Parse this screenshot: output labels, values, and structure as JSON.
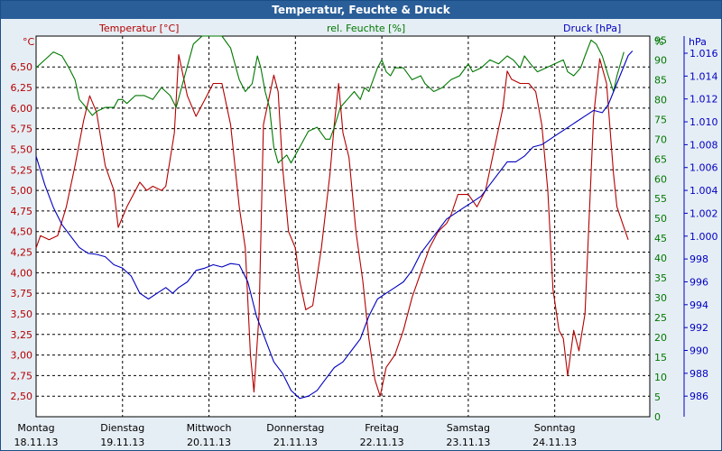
{
  "title": "Temperatur, Feuchte & Druck",
  "legend": {
    "temperature": "Temperatur [°C]",
    "humidity": "rel. Feuchte [%]",
    "pressure": "Druck [hPa]"
  },
  "units": {
    "left": "°C",
    "right1": "%",
    "right2": "hPa"
  },
  "colors": {
    "temperature": "#b40000",
    "humidity": "#007800",
    "pressure": "#0000c0",
    "grid": "#000000",
    "background": "#ffffff"
  },
  "chart_data": {
    "type": "line",
    "title": "Temperatur, Feuchte & Druck",
    "grid": true,
    "x_categories": [
      {
        "day": "Montag",
        "date": "18.11.13"
      },
      {
        "day": "Dienstag",
        "date": "19.11.13"
      },
      {
        "day": "Mittwoch",
        "date": "20.11.13"
      },
      {
        "day": "Donnerstag",
        "date": "21.11.13"
      },
      {
        "day": "Freitag",
        "date": "22.11.13"
      },
      {
        "day": "Samstag",
        "date": "23.11.13"
      },
      {
        "day": "Sonntag",
        "date": "24.11.13"
      }
    ],
    "x_unit": "days since Montag 18.11.13 00:00",
    "xlim": [
      0,
      7.1
    ],
    "axes": {
      "temperature": {
        "ylim": [
          2.25,
          6.875
        ],
        "ticks": [
          "2,50",
          "2,75",
          "3,00",
          "3,25",
          "3,50",
          "3,75",
          "4,00",
          "4,25",
          "4,50",
          "4,75",
          "5,00",
          "5,25",
          "5,50",
          "5,75",
          "6,00",
          "6,25",
          "6,50"
        ]
      },
      "humidity": {
        "ylim": [
          0,
          96
        ],
        "ticks": [
          "0",
          "5",
          "10",
          "15",
          "20",
          "25",
          "30",
          "35",
          "40",
          "45",
          "50",
          "55",
          "60",
          "65",
          "70",
          "75",
          "80",
          "85",
          "90",
          "95"
        ]
      },
      "pressure": {
        "ylim": [
          984.2,
          1017.5
        ],
        "ticks": [
          "986",
          "988",
          "990",
          "992",
          "994",
          "996",
          "998",
          "1.000",
          "1.002",
          "1.004",
          "1.006",
          "1.008",
          "1.010",
          "1.012",
          "1.014",
          "1.016"
        ]
      }
    },
    "series": [
      {
        "name": "Temperatur [°C]",
        "axis": "temperature",
        "points": [
          [
            0,
            4.3
          ],
          [
            0.05,
            4.45
          ],
          [
            0.15,
            4.4
          ],
          [
            0.25,
            4.45
          ],
          [
            0.35,
            4.8
          ],
          [
            0.45,
            5.3
          ],
          [
            0.55,
            5.85
          ],
          [
            0.62,
            6.15
          ],
          [
            0.7,
            5.95
          ],
          [
            0.8,
            5.3
          ],
          [
            0.9,
            5.0
          ],
          [
            0.95,
            4.55
          ],
          [
            1.05,
            4.8
          ],
          [
            1.15,
            5.0
          ],
          [
            1.2,
            5.1
          ],
          [
            1.28,
            5.0
          ],
          [
            1.35,
            5.05
          ],
          [
            1.45,
            5.0
          ],
          [
            1.5,
            5.05
          ],
          [
            1.6,
            5.7
          ],
          [
            1.65,
            6.65
          ],
          [
            1.75,
            6.15
          ],
          [
            1.85,
            5.9
          ],
          [
            1.95,
            6.1
          ],
          [
            2.05,
            6.3
          ],
          [
            2.15,
            6.3
          ],
          [
            2.25,
            5.8
          ],
          [
            2.35,
            4.8
          ],
          [
            2.42,
            4.3
          ],
          [
            2.48,
            3.0
          ],
          [
            2.52,
            2.55
          ],
          [
            2.58,
            3.5
          ],
          [
            2.63,
            5.8
          ],
          [
            2.7,
            6.15
          ],
          [
            2.75,
            6.4
          ],
          [
            2.8,
            6.2
          ],
          [
            2.85,
            5.3
          ],
          [
            2.92,
            4.5
          ],
          [
            3.0,
            4.3
          ],
          [
            3.05,
            3.9
          ],
          [
            3.12,
            3.55
          ],
          [
            3.2,
            3.6
          ],
          [
            3.3,
            4.3
          ],
          [
            3.4,
            5.2
          ],
          [
            3.45,
            5.8
          ],
          [
            3.5,
            6.3
          ],
          [
            3.55,
            5.7
          ],
          [
            3.62,
            5.4
          ],
          [
            3.7,
            4.5
          ],
          [
            3.78,
            3.9
          ],
          [
            3.85,
            3.2
          ],
          [
            3.92,
            2.7
          ],
          [
            3.98,
            2.5
          ],
          [
            4.05,
            2.85
          ],
          [
            4.15,
            3.0
          ],
          [
            4.25,
            3.3
          ],
          [
            4.35,
            3.7
          ],
          [
            4.45,
            4.0
          ],
          [
            4.55,
            4.3
          ],
          [
            4.65,
            4.5
          ],
          [
            4.75,
            4.6
          ],
          [
            4.8,
            4.7
          ],
          [
            4.88,
            4.95
          ],
          [
            5.0,
            4.95
          ],
          [
            5.1,
            4.8
          ],
          [
            5.2,
            5.0
          ],
          [
            5.3,
            5.5
          ],
          [
            5.4,
            6.0
          ],
          [
            5.45,
            6.45
          ],
          [
            5.5,
            6.35
          ],
          [
            5.6,
            6.3
          ],
          [
            5.7,
            6.3
          ],
          [
            5.78,
            6.2
          ],
          [
            5.85,
            5.8
          ],
          [
            5.92,
            5.0
          ],
          [
            5.98,
            3.8
          ],
          [
            6.05,
            3.3
          ],
          [
            6.1,
            3.2
          ],
          [
            6.15,
            2.75
          ],
          [
            6.22,
            3.3
          ],
          [
            6.28,
            3.05
          ],
          [
            6.35,
            3.5
          ],
          [
            6.45,
            5.9
          ],
          [
            6.52,
            6.6
          ],
          [
            6.6,
            6.3
          ],
          [
            6.68,
            5.2
          ],
          [
            6.72,
            4.8
          ],
          [
            6.8,
            4.55
          ],
          [
            6.85,
            4.4
          ]
        ]
      },
      {
        "name": "rel. Feuchte [%]",
        "axis": "humidity",
        "points": [
          [
            0,
            88
          ],
          [
            0.1,
            90
          ],
          [
            0.2,
            92
          ],
          [
            0.3,
            91
          ],
          [
            0.38,
            88
          ],
          [
            0.45,
            85
          ],
          [
            0.5,
            80
          ],
          [
            0.58,
            78
          ],
          [
            0.65,
            76
          ],
          [
            0.7,
            77
          ],
          [
            0.8,
            78
          ],
          [
            0.9,
            78
          ],
          [
            0.95,
            80
          ],
          [
            1.0,
            80
          ],
          [
            1.05,
            79
          ],
          [
            1.15,
            81
          ],
          [
            1.25,
            81
          ],
          [
            1.35,
            80
          ],
          [
            1.45,
            83
          ],
          [
            1.55,
            81
          ],
          [
            1.62,
            78
          ],
          [
            1.72,
            86
          ],
          [
            1.82,
            94
          ],
          [
            1.92,
            96
          ],
          [
            2.05,
            96
          ],
          [
            2.15,
            96
          ],
          [
            2.25,
            93
          ],
          [
            2.35,
            85
          ],
          [
            2.42,
            82
          ],
          [
            2.5,
            84
          ],
          [
            2.56,
            91
          ],
          [
            2.6,
            88
          ],
          [
            2.65,
            82
          ],
          [
            2.7,
            78
          ],
          [
            2.75,
            68
          ],
          [
            2.8,
            64
          ],
          [
            2.9,
            66
          ],
          [
            2.95,
            64
          ],
          [
            3.05,
            68
          ],
          [
            3.15,
            72
          ],
          [
            3.25,
            73
          ],
          [
            3.35,
            70
          ],
          [
            3.4,
            70
          ],
          [
            3.45,
            73
          ],
          [
            3.52,
            78
          ],
          [
            3.6,
            80
          ],
          [
            3.68,
            82
          ],
          [
            3.75,
            80
          ],
          [
            3.8,
            83
          ],
          [
            3.85,
            82
          ],
          [
            3.9,
            85
          ],
          [
            3.95,
            88
          ],
          [
            4.0,
            90
          ],
          [
            4.05,
            87
          ],
          [
            4.1,
            86
          ],
          [
            4.15,
            88
          ],
          [
            4.25,
            88
          ],
          [
            4.35,
            85
          ],
          [
            4.45,
            86
          ],
          [
            4.5,
            84
          ],
          [
            4.55,
            83
          ],
          [
            4.6,
            82
          ],
          [
            4.7,
            83
          ],
          [
            4.8,
            85
          ],
          [
            4.9,
            86
          ],
          [
            5.0,
            89
          ],
          [
            5.05,
            87
          ],
          [
            5.15,
            88
          ],
          [
            5.25,
            90
          ],
          [
            5.35,
            89
          ],
          [
            5.45,
            91
          ],
          [
            5.52,
            90
          ],
          [
            5.6,
            88
          ],
          [
            5.65,
            91
          ],
          [
            5.72,
            89
          ],
          [
            5.8,
            87
          ],
          [
            5.9,
            88
          ],
          [
            6.0,
            89
          ],
          [
            6.1,
            90
          ],
          [
            6.15,
            87
          ],
          [
            6.22,
            86
          ],
          [
            6.3,
            88
          ],
          [
            6.35,
            91
          ],
          [
            6.42,
            95
          ],
          [
            6.48,
            94
          ],
          [
            6.55,
            91
          ],
          [
            6.62,
            86
          ],
          [
            6.68,
            82
          ],
          [
            6.72,
            86
          ],
          [
            6.8,
            92
          ]
        ]
      },
      {
        "name": "Druck [hPa]",
        "axis": "pressure",
        "points": [
          [
            0,
            1007.0
          ],
          [
            0.1,
            1004.5
          ],
          [
            0.2,
            1002.5
          ],
          [
            0.3,
            1001.0
          ],
          [
            0.4,
            1000.0
          ],
          [
            0.5,
            999.0
          ],
          [
            0.6,
            998.5
          ],
          [
            0.7,
            998.4
          ],
          [
            0.8,
            998.2
          ],
          [
            0.9,
            997.5
          ],
          [
            1.0,
            997.2
          ],
          [
            1.1,
            996.5
          ],
          [
            1.2,
            995.0
          ],
          [
            1.3,
            994.5
          ],
          [
            1.4,
            995.0
          ],
          [
            1.5,
            995.5
          ],
          [
            1.58,
            995.0
          ],
          [
            1.65,
            995.5
          ],
          [
            1.75,
            996.0
          ],
          [
            1.85,
            997.0
          ],
          [
            1.95,
            997.2
          ],
          [
            2.05,
            997.5
          ],
          [
            2.15,
            997.3
          ],
          [
            2.25,
            997.6
          ],
          [
            2.35,
            997.5
          ],
          [
            2.45,
            996.0
          ],
          [
            2.55,
            993.0
          ],
          [
            2.65,
            991.0
          ],
          [
            2.75,
            989.0
          ],
          [
            2.85,
            988.0
          ],
          [
            2.95,
            986.5
          ],
          [
            3.05,
            985.8
          ],
          [
            3.15,
            986.0
          ],
          [
            3.25,
            986.5
          ],
          [
            3.35,
            987.5
          ],
          [
            3.45,
            988.5
          ],
          [
            3.55,
            989.0
          ],
          [
            3.65,
            990.0
          ],
          [
            3.75,
            991.0
          ],
          [
            3.85,
            993.0
          ],
          [
            3.95,
            994.5
          ],
          [
            4.05,
            995.0
          ],
          [
            4.15,
            995.5
          ],
          [
            4.25,
            996.0
          ],
          [
            4.35,
            997.0
          ],
          [
            4.45,
            998.5
          ],
          [
            4.55,
            999.5
          ],
          [
            4.65,
            1000.5
          ],
          [
            4.75,
            1001.5
          ],
          [
            4.85,
            1002.0
          ],
          [
            4.95,
            1002.5
          ],
          [
            5.05,
            1003.0
          ],
          [
            5.15,
            1003.5
          ],
          [
            5.25,
            1004.5
          ],
          [
            5.35,
            1005.5
          ],
          [
            5.45,
            1006.5
          ],
          [
            5.55,
            1006.5
          ],
          [
            5.65,
            1007.0
          ],
          [
            5.75,
            1007.8
          ],
          [
            5.85,
            1008.0
          ],
          [
            5.95,
            1008.5
          ],
          [
            6.05,
            1009.0
          ],
          [
            6.15,
            1009.5
          ],
          [
            6.25,
            1010.0
          ],
          [
            6.35,
            1010.5
          ],
          [
            6.45,
            1011.0
          ],
          [
            6.55,
            1010.8
          ],
          [
            6.62,
            1011.5
          ],
          [
            6.7,
            1013.0
          ],
          [
            6.78,
            1014.5
          ],
          [
            6.85,
            1015.8
          ],
          [
            6.9,
            1016.2
          ]
        ]
      }
    ]
  }
}
